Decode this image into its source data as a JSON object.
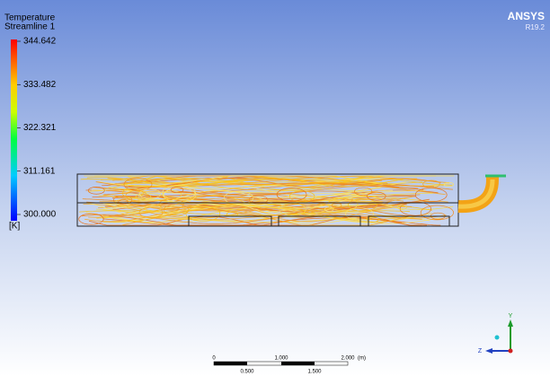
{
  "legend": {
    "title": "Temperature",
    "subtitle": "Streamline 1",
    "labels": [
      "344.642",
      "333.482",
      "322.321",
      "311.161",
      "300.000"
    ],
    "unit": "[K]"
  },
  "brand": {
    "name": "ANSYS",
    "version": "R19.2"
  },
  "scale_bar": {
    "top_labels": [
      "0",
      "1.000",
      "2.000"
    ],
    "unit": "(m)",
    "bottom_labels": [
      "0.500",
      "1.500"
    ]
  },
  "triad": {
    "y": "Y",
    "z": "Z"
  }
}
